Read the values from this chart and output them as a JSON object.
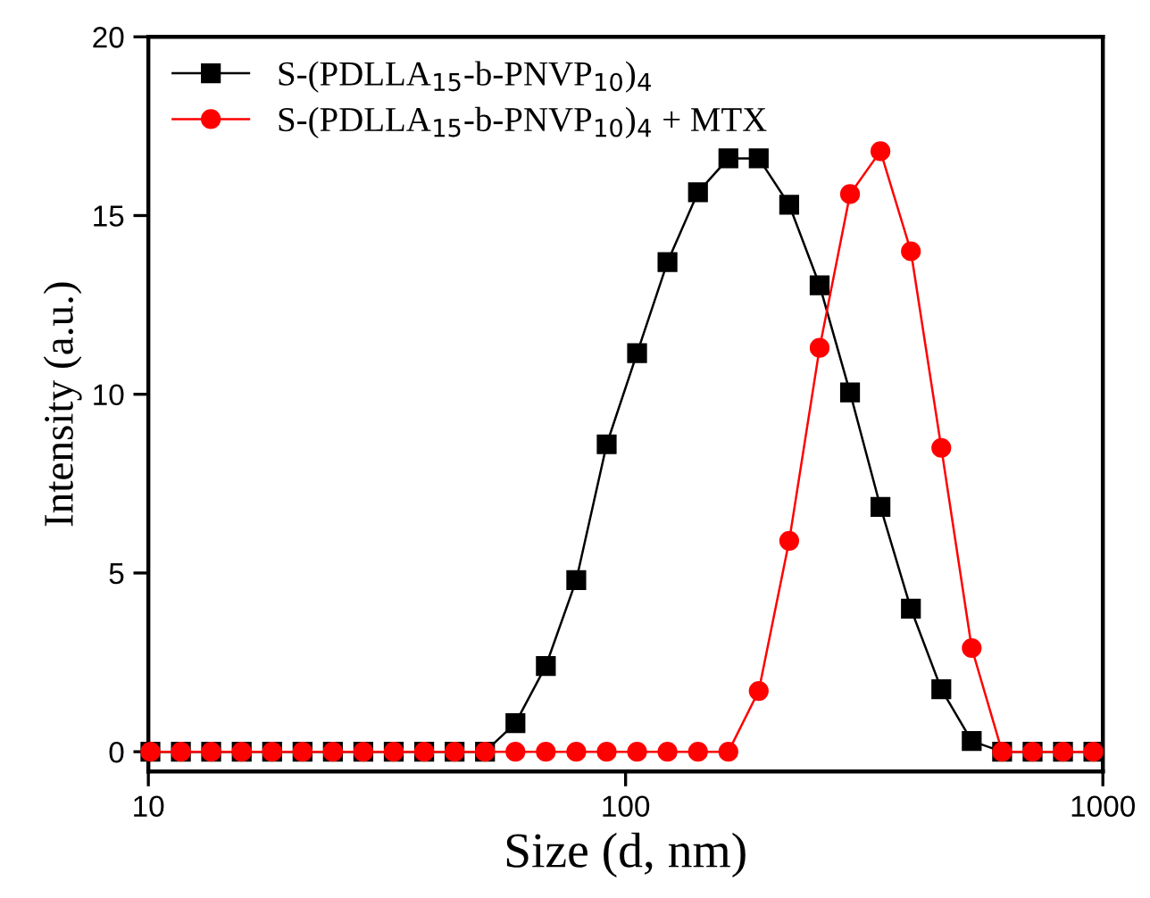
{
  "chart_data": {
    "type": "line",
    "xlabel": "Size (d, nm)",
    "ylabel": "Intensity (a.u.)",
    "x": [
      10.1,
      11.7,
      13.54,
      15.69,
      18.17,
      21.04,
      24.36,
      28.21,
      32.67,
      37.84,
      43.82,
      50.75,
      58.77,
      68.06,
      78.82,
      91.28,
      105.7,
      122.4,
      141.8,
      164.2,
      190.1,
      220.2,
      255.0,
      295.3,
      342.0,
      396.1,
      458.7,
      531.2,
      615.1,
      712.4,
      825.0,
      955.4
    ],
    "series": [
      {
        "name": "S-(PDLLA$_{15}$-b-PNVP$_{10}$)$_{4}$",
        "color": "#000000",
        "marker": "square",
        "values": [
          0,
          0,
          0,
          0,
          0,
          0,
          0,
          0,
          0,
          0,
          0,
          0,
          0.8,
          2.4,
          4.8,
          8.6,
          11.15,
          13.7,
          15.65,
          16.6,
          16.6,
          15.3,
          13.05,
          10.05,
          6.85,
          4.0,
          1.75,
          0.3,
          0,
          0,
          0,
          0
        ]
      },
      {
        "name": "S-(PDLLA$_{15}$-b-PNVP$_{10}$)$_{4}$ + MTX",
        "color": "#ff0000",
        "marker": "circle",
        "values": [
          0,
          0,
          0,
          0,
          0,
          0,
          0,
          0,
          0,
          0,
          0,
          0,
          0,
          0,
          0,
          0,
          0,
          0,
          0,
          0,
          1.7,
          5.9,
          11.3,
          15.6,
          16.8,
          14.0,
          8.5,
          2.9,
          0,
          0,
          0,
          0
        ]
      }
    ],
    "log": "x",
    "xlim": [
      10,
      1000
    ],
    "xticks": [
      10,
      100,
      1000
    ],
    "ylim": [
      -0.55,
      20
    ],
    "yticks": [
      0,
      5,
      10,
      15,
      20
    ],
    "legend": "top left",
    "grid": false,
    "line_style": "solid"
  }
}
